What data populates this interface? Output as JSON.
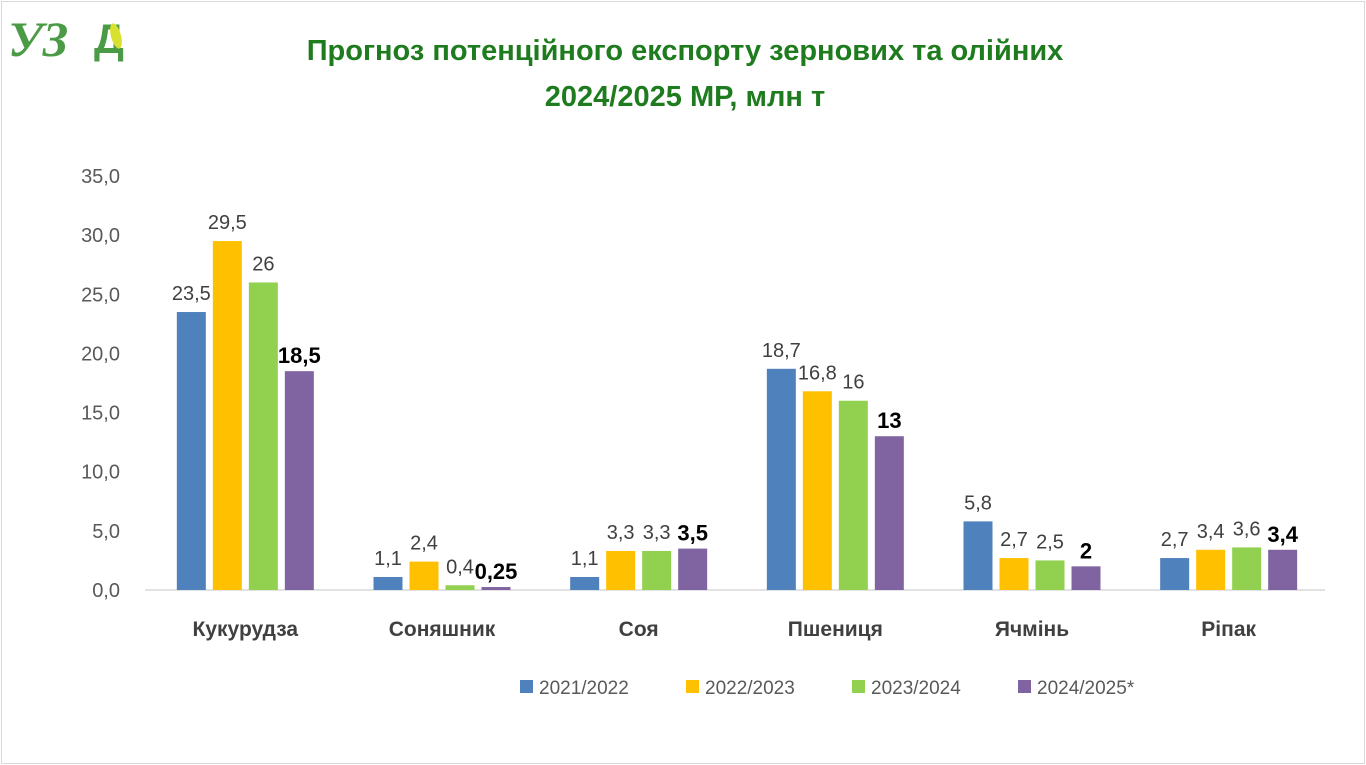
{
  "logo": {
    "text": "УЗА"
  },
  "chart_data": {
    "type": "bar",
    "title": "Прогноз потенційного експорту зернових та олійних 2024/2025 МР, млн т",
    "title_lines": [
      "Прогноз потенційного експорту зернових та олійних",
      "2024/2025 МР, млн т"
    ],
    "categories": [
      "Кукурудза",
      "Соняшник",
      "Соя",
      "Пшениця",
      "Ячмінь",
      "Ріпак"
    ],
    "series": [
      {
        "name": "2021/2022",
        "color": "#4f81bd",
        "values": [
          23.5,
          1.1,
          1.1,
          18.7,
          5.8,
          2.7
        ],
        "labels": [
          "23,5",
          "1,1",
          "1,1",
          "18,7",
          "5,8",
          "2,7"
        ],
        "bold_labels": false
      },
      {
        "name": "2022/2023",
        "color": "#ffc000",
        "values": [
          29.5,
          2.4,
          3.3,
          16.8,
          2.7,
          3.4
        ],
        "labels": [
          "29,5",
          "2,4",
          "3,3",
          "16,8",
          "2,7",
          "3,4"
        ],
        "bold_labels": false
      },
      {
        "name": "2023/2024",
        "color": "#92d050",
        "values": [
          26,
          0.4,
          3.3,
          16,
          2.5,
          3.6
        ],
        "labels": [
          "26",
          "0,4",
          "3,3",
          "16",
          "2,5",
          "3,6"
        ],
        "bold_labels": false
      },
      {
        "name": "2024/2025*",
        "color": "#8064a2",
        "values": [
          18.5,
          0.25,
          3.5,
          13,
          2,
          3.4
        ],
        "labels": [
          "18,5",
          "0,25",
          "3,5",
          "13",
          "2",
          "3,4"
        ],
        "bold_labels": true
      }
    ],
    "ylim": [
      0,
      35
    ],
    "yticks": [
      "0,0",
      "5,0",
      "10,0",
      "15,0",
      "20,0",
      "25,0",
      "30,0",
      "35,0"
    ],
    "grid": false,
    "legend": "bottom",
    "xlabel": "",
    "ylabel": ""
  }
}
